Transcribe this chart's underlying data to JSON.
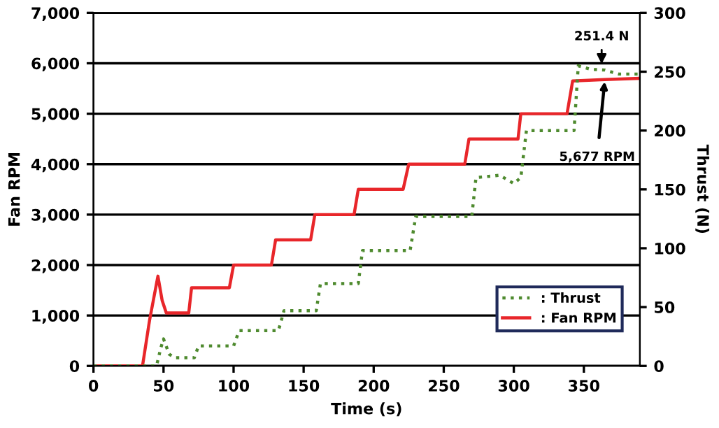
{
  "chart_data": {
    "type": "line",
    "xlabel": "Time (s)",
    "ylabel": "Fan RPM",
    "y2label": "Thrust (N)",
    "xlim": [
      0,
      390
    ],
    "xticks": [
      0,
      50,
      100,
      150,
      200,
      250,
      300,
      350
    ],
    "ylim": [
      0,
      7000
    ],
    "yticks": [
      {
        "value": 0,
        "label": "0"
      },
      {
        "value": 1000,
        "label": "1,000"
      },
      {
        "value": 2000,
        "label": "2,000"
      },
      {
        "value": 3000,
        "label": "3,000"
      },
      {
        "value": 4000,
        "label": "4,000"
      },
      {
        "value": 5000,
        "label": "5,000"
      },
      {
        "value": 6000,
        "label": "6,000"
      },
      {
        "value": 7000,
        "label": "7,000"
      }
    ],
    "y2lim": [
      0,
      300
    ],
    "y2ticks": [
      0,
      50,
      100,
      150,
      200,
      250,
      300
    ],
    "grid": "y",
    "legend": "bottom right",
    "marker": "none",
    "series": [
      {
        "name": ": Thrust",
        "color": "#4e8a2e",
        "axis": "y2",
        "line_style": "dotted",
        "x": [
          0,
          45,
          48,
          50,
          54,
          58,
          72,
          75,
          100,
          104,
          132,
          136,
          159,
          162,
          189,
          192,
          226,
          230,
          270,
          273,
          290,
          300,
          305,
          309,
          343,
          346,
          355,
          365,
          375,
          389
        ],
        "values": [
          0,
          0,
          15,
          23,
          10,
          7,
          7,
          17,
          17,
          30,
          30,
          47,
          47,
          70,
          70,
          98,
          98,
          127,
          127,
          160,
          162,
          155,
          160,
          200,
          200,
          255,
          252,
          251.4,
          248,
          248
        ]
      },
      {
        "name": ": Fan RPM",
        "color": "#e8262a",
        "line_style": "solid",
        "x": [
          0,
          35,
          40,
          46,
          49,
          52,
          68,
          70,
          97,
          100,
          127,
          130,
          155,
          158,
          186,
          189,
          221,
          225,
          265,
          268,
          303,
          305,
          338,
          342,
          365,
          389
        ],
        "values": [
          0,
          0,
          900,
          1780,
          1300,
          1050,
          1050,
          1550,
          1550,
          2000,
          2000,
          2500,
          2500,
          3000,
          3000,
          3500,
          3500,
          4000,
          4000,
          4500,
          4500,
          5000,
          5000,
          5650,
          5677,
          5700
        ]
      }
    ],
    "annotations": [
      "251.4 N",
      {
        "text": "5,677 RPM",
        "x": 365,
        "y": 5677
      }
    ]
  }
}
